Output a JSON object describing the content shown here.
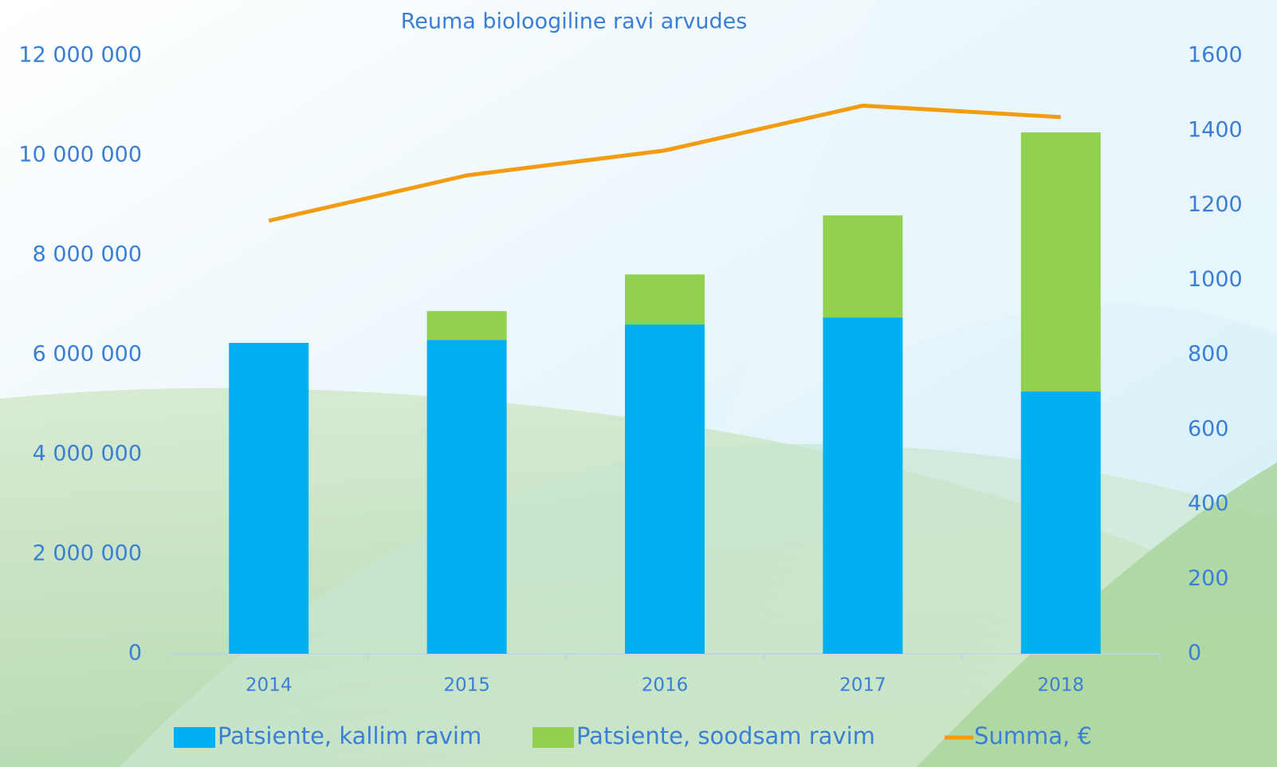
{
  "chart_data": {
    "type": "bar",
    "stacked": true,
    "title": "Reuma bioloogiline ravi arvudes",
    "categories": [
      "2014",
      "2015",
      "2016",
      "2017",
      "2018"
    ],
    "series": [
      {
        "name": "Patsiente, kallim ravim",
        "color": "#00b0f0",
        "axis": "y2",
        "values": [
          832,
          840,
          881,
          900,
          702
        ]
      },
      {
        "name": "Patsiente, soodsam ravim",
        "color": "#92d050",
        "axis": "y2",
        "values": [
          0,
          77,
          134,
          273,
          693
        ]
      },
      {
        "name": "Summa, €",
        "color": "#f39c12",
        "type": "line",
        "axis": "y",
        "values": [
          8690000,
          9600000,
          10100000,
          11000000,
          10770000
        ]
      }
    ],
    "ylim": [
      0,
      12000000
    ],
    "yticks": [
      {
        "value": 0,
        "label": "0"
      },
      {
        "value": 2000000,
        "label": "2 000 000"
      },
      {
        "value": 4000000,
        "label": "4 000 000"
      },
      {
        "value": 6000000,
        "label": "6 000 000"
      },
      {
        "value": 8000000,
        "label": "8 000 000"
      },
      {
        "value": 10000000,
        "label": "10 000 000"
      },
      {
        "value": 12000000,
        "label": "12 000 000"
      }
    ],
    "y2lim": [
      0,
      1600
    ],
    "y2ticks": [
      0,
      200,
      400,
      600,
      800,
      1000,
      1200,
      1400,
      1600
    ],
    "grid": false,
    "legend": "bottom"
  }
}
